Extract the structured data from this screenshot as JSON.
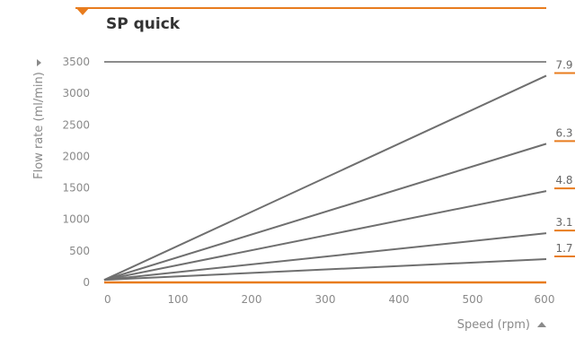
{
  "chart_data": {
    "type": "line",
    "title": "SP quick",
    "xlabel": "Speed (rpm)",
    "ylabel": "Flow rate (ml/min)",
    "xlim": [
      0,
      600
    ],
    "ylim": [
      0,
      3500
    ],
    "xticks": [
      0,
      100,
      200,
      300,
      400,
      500,
      600
    ],
    "yticks": [
      0,
      500,
      1000,
      1500,
      2000,
      2500,
      3000,
      3500
    ],
    "grid": false,
    "legend": "none",
    "series": [
      {
        "name": "7.9",
        "x": [
          0,
          600
        ],
        "y": [
          40,
          3280
        ]
      },
      {
        "name": "6.3",
        "x": [
          0,
          600
        ],
        "y": [
          40,
          2200
        ]
      },
      {
        "name": "4.8",
        "x": [
          0,
          600
        ],
        "y": [
          40,
          1450
        ]
      },
      {
        "name": "3.1",
        "x": [
          0,
          600
        ],
        "y": [
          40,
          780
        ]
      },
      {
        "name": "1.7",
        "x": [
          0,
          600
        ],
        "y": [
          40,
          370
        ]
      }
    ]
  },
  "colors": {
    "accent": "#e87c1e",
    "line": "#6f6f6f",
    "ceiling": "#8c8c8c",
    "tick_text": "#8a8a8a",
    "title_text": "#333333"
  },
  "icons": {
    "title_marker": "orange-triangle-down-icon",
    "y_axis_arrow": "triangle-right-icon",
    "x_axis_arrow": "triangle-up-icon"
  }
}
